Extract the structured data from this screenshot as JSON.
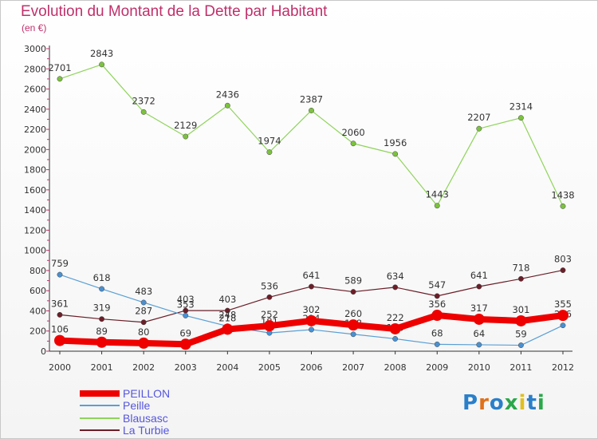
{
  "title": "Evolution du Montant de la Dette par Habitant",
  "subtitle": "(en €)",
  "logo": "Proxiti",
  "chart_data": {
    "type": "line",
    "title": "Evolution du Montant de la Dette par Habitant",
    "ylabel": "(en €)",
    "xlabel": "",
    "ylim": [
      0,
      3000
    ],
    "yticks": [
      0,
      200,
      400,
      600,
      800,
      1000,
      1200,
      1400,
      1600,
      1800,
      2000,
      2200,
      2400,
      2600,
      2800,
      3000
    ],
    "categories": [
      "2000",
      "2001",
      "2002",
      "2003",
      "2004",
      "2005",
      "2006",
      "2007",
      "2008",
      "2009",
      "2010",
      "2011",
      "2012"
    ],
    "series": [
      {
        "name": "La Turbie",
        "color": "#6b1e28",
        "width": 1.2,
        "marker": "#6b1e28",
        "values": [
          361,
          319,
          287,
          403,
          403,
          536,
          641,
          589,
          634,
          547,
          641,
          718,
          803
        ]
      },
      {
        "name": "Peille",
        "color": "#5a9fd4",
        "width": 1.2,
        "marker": "#4a90d0",
        "values": [
          759,
          618,
          483,
          353,
          248,
          181,
          214,
          168,
          123,
          68,
          64,
          59,
          256
        ]
      },
      {
        "name": "Blausasc",
        "color": "#8fd45a",
        "width": 1.2,
        "marker": "#7cc23e",
        "values": [
          2701,
          2843,
          2372,
          2129,
          2436,
          1974,
          2387,
          2060,
          1956,
          1443,
          2207,
          2314,
          1438
        ]
      },
      {
        "name": "PEILLON",
        "color": "#ee0000",
        "width": 8,
        "marker": "#ee0000",
        "values": [
          106,
          89,
          80,
          69,
          218,
          252,
          302,
          260,
          222,
          356,
          317,
          301,
          355
        ]
      }
    ],
    "legend_order": [
      "PEILLON",
      "Peille",
      "Blausasc",
      "La Turbie"
    ],
    "legend_position": "bottom-left",
    "grid": false
  }
}
